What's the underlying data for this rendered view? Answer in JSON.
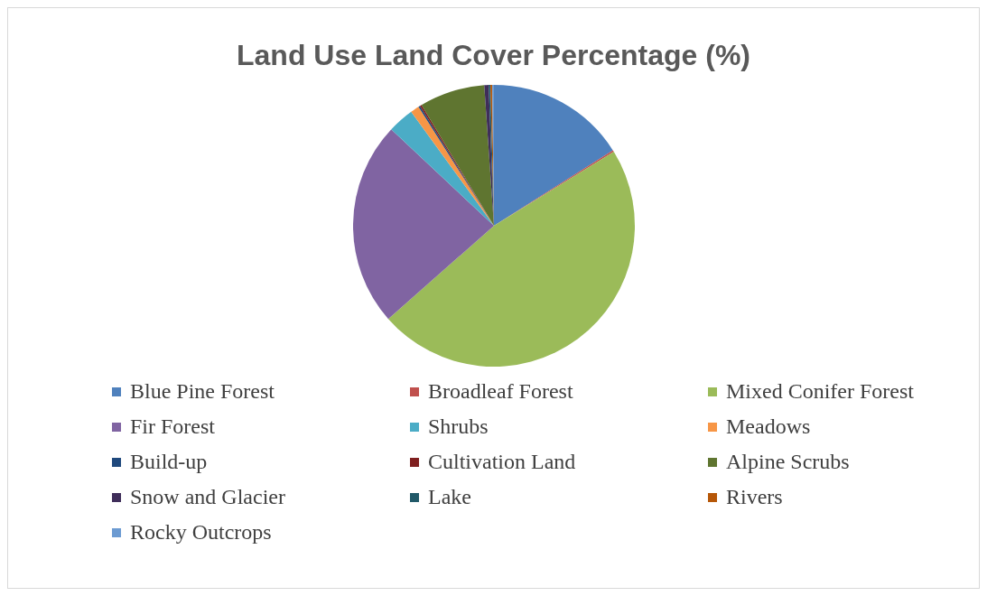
{
  "chart_data": {
    "type": "pie",
    "title": "Land Use Land Cover Percentage (%)",
    "categories": [
      "Blue Pine Forest",
      "Broadleaf Forest",
      "Mixed Conifer Forest",
      "Fir Forest",
      "Shrubs",
      "Meadows",
      "Build-up",
      "Cultivation Land",
      "Alpine Scrubs",
      "Snow and Glacier",
      "Lake",
      "Rivers",
      "Rocky Outcrops"
    ],
    "values": [
      16,
      0.2,
      47.3,
      23.5,
      3,
      1,
      0.2,
      0.2,
      7.5,
      0.5,
      0.2,
      0.2,
      0.2
    ],
    "colors": [
      "#4f81bd",
      "#c0504d",
      "#9bbb59",
      "#8064a2",
      "#4bacc6",
      "#f79646",
      "#1f497d",
      "#7f1f1f",
      "#5f7530",
      "#3f2e5a",
      "#215968",
      "#b65708",
      "#6c9bd2"
    ],
    "legend": "bottom"
  }
}
